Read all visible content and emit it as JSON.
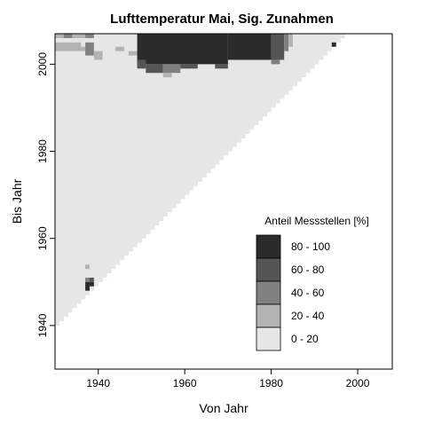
{
  "chart_data": {
    "type": "heatmap",
    "title": "Lufttemperatur Mai, Sig. Zunahmen",
    "xlabel": "Von Jahr",
    "ylabel": "Bis Jahr",
    "xlim": [
      1930,
      2008
    ],
    "ylim": [
      1930,
      2007
    ],
    "xticks": [
      1940,
      1960,
      1980,
      2000
    ],
    "yticks": [
      1940,
      1960,
      1980,
      2000
    ],
    "cell_size_years": 1,
    "valid_region": "bis_jahr >= von_jahr + 10, von_jahr 1930-1997, bis_jahr 1940-2007",
    "default_class": "0 - 20",
    "legend": {
      "title": "Anteil Messstellen [%]",
      "classes": [
        {
          "label": "80 - 100",
          "color": "#2b2b2b"
        },
        {
          "label": "60 -  80",
          "color": "#555555"
        },
        {
          "label": "40 -  60",
          "color": "#808080"
        },
        {
          "label": "20 -  40",
          "color": "#b3b3b3"
        },
        {
          "label": " 0 -  20",
          "color": "#e6e6e6"
        }
      ]
    },
    "highlighted_cells": [
      {
        "von": [
          1930,
          1932
        ],
        "bis": [
          2006,
          2007
        ],
        "class": "20 - 40"
      },
      {
        "von": [
          1932,
          1934
        ],
        "bis": [
          2006,
          2007
        ],
        "class": "40 - 60"
      },
      {
        "von": [
          1934,
          1937
        ],
        "bis": [
          2006,
          2007
        ],
        "class": "20 - 40"
      },
      {
        "von": [
          1937,
          1939
        ],
        "bis": [
          2006,
          2007
        ],
        "class": "40 - 60"
      },
      {
        "von": [
          1930,
          1936
        ],
        "bis": [
          2003,
          2005
        ],
        "class": "20 - 40"
      },
      {
        "von": [
          1936,
          1938
        ],
        "bis": [
          2003,
          2004
        ],
        "class": "20 - 40"
      },
      {
        "von": [
          1937,
          1939
        ],
        "bis": [
          2002,
          2005
        ],
        "class": "40 - 60"
      },
      {
        "von": [
          1939,
          1941
        ],
        "bis": [
          2001,
          2003
        ],
        "class": "20 - 40"
      },
      {
        "von": [
          1944,
          1946
        ],
        "bis": [
          2003,
          2004
        ],
        "class": "20 - 40"
      },
      {
        "von": [
          1947,
          1949
        ],
        "bis": [
          2002,
          2003
        ],
        "class": "20 - 40"
      },
      {
        "von": [
          1949,
          1970
        ],
        "bis": [
          2000,
          2007
        ],
        "class": "80 - 100"
      },
      {
        "von": [
          1970,
          1980
        ],
        "bis": [
          2001,
          2007
        ],
        "class": "80 - 100"
      },
      {
        "von": [
          1949,
          1951
        ],
        "bis": [
          1999,
          2001
        ],
        "class": "60 - 80"
      },
      {
        "von": [
          1951,
          1955
        ],
        "bis": [
          1998,
          2000
        ],
        "class": "60 - 80"
      },
      {
        "von": [
          1955,
          1959
        ],
        "bis": [
          1998,
          2000
        ],
        "class": "40 - 60"
      },
      {
        "von": [
          1959,
          1963
        ],
        "bis": [
          1999,
          2000
        ],
        "class": "60 - 80"
      },
      {
        "von": [
          1967,
          1970
        ],
        "bis": [
          1999,
          2000
        ],
        "class": "60 - 80"
      },
      {
        "von": [
          1955,
          1957
        ],
        "bis": [
          1997,
          1998
        ],
        "class": "20 - 40"
      },
      {
        "von": [
          1980,
          1983
        ],
        "bis": [
          2001,
          2007
        ],
        "class": "60 - 80"
      },
      {
        "von": [
          1980,
          1982
        ],
        "bis": [
          2000,
          2001
        ],
        "class": "40 - 60"
      },
      {
        "von": [
          1983,
          1984
        ],
        "bis": [
          2003,
          2007
        ],
        "class": "40 - 60"
      },
      {
        "von": [
          1984,
          1985
        ],
        "bis": [
          2004,
          2007
        ],
        "class": "20 - 40"
      },
      {
        "von": [
          1994,
          1995
        ],
        "bis": [
          2004,
          2005
        ],
        "class": "80 - 100"
      },
      {
        "von": [
          1937,
          1938
        ],
        "bis": [
          1953,
          1954
        ],
        "class": "20 - 40"
      },
      {
        "von": [
          1937,
          1938
        ],
        "bis": [
          1950,
          1951
        ],
        "class": "40 - 60"
      },
      {
        "von": [
          1937,
          1938
        ],
        "bis": [
          1948,
          1950
        ],
        "class": "80 - 100"
      },
      {
        "von": [
          1938,
          1939
        ],
        "bis": [
          1949,
          1950
        ],
        "class": "80 - 100"
      },
      {
        "von": [
          1938,
          1939
        ],
        "bis": [
          1950,
          1951
        ],
        "class": "60 - 80"
      }
    ]
  }
}
